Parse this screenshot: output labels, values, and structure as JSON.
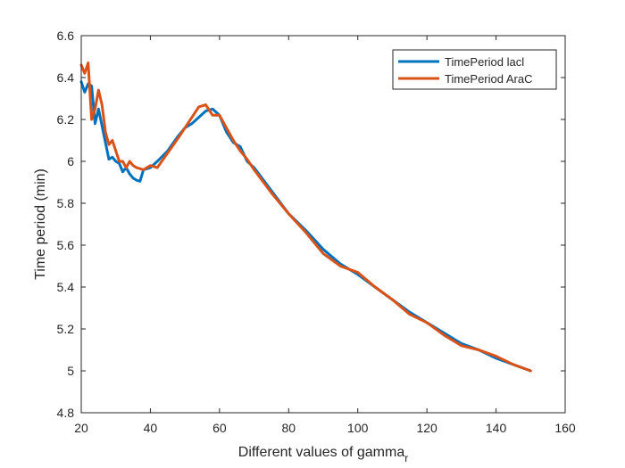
{
  "chart_data": {
    "type": "line",
    "xlabel": "Different values of gamma",
    "xlabel_subscript": "r",
    "ylabel": "Time period (min)",
    "xlim": [
      20,
      160
    ],
    "ylim": [
      4.8,
      6.6
    ],
    "xticks": [
      20,
      40,
      60,
      80,
      100,
      120,
      140,
      160
    ],
    "yticks": [
      4.8,
      5,
      5.2,
      5.4,
      5.6,
      5.8,
      6,
      6.2,
      6.4,
      6.6
    ],
    "xtick_labels": [
      "20",
      "40",
      "60",
      "80",
      "100",
      "120",
      "140",
      "160"
    ],
    "ytick_labels": [
      "4.8",
      "5",
      "5.2",
      "5.4",
      "5.6",
      "5.8",
      "6",
      "6.2",
      "6.4",
      "6.6"
    ],
    "grid": false,
    "legend_position": "top-right",
    "series": [
      {
        "name": "TimePeriod lacl",
        "color": "#0072BD",
        "x": [
          20,
          21,
          22,
          23,
          24,
          25,
          26,
          27,
          28,
          29,
          30,
          31,
          32,
          33,
          34,
          35,
          36,
          37,
          38,
          40,
          42,
          45,
          48,
          50,
          52,
          54,
          56,
          58,
          60,
          62,
          64,
          66,
          68,
          70,
          75,
          80,
          85,
          90,
          95,
          100,
          105,
          110,
          115,
          120,
          125,
          130,
          135,
          140,
          145,
          150
        ],
        "y": [
          6.38,
          6.33,
          6.37,
          6.36,
          6.18,
          6.25,
          6.17,
          6.09,
          6.01,
          6.02,
          6.0,
          5.99,
          5.95,
          5.97,
          5.94,
          5.92,
          5.91,
          5.905,
          5.96,
          5.97,
          6.0,
          6.05,
          6.12,
          6.16,
          6.18,
          6.21,
          6.24,
          6.25,
          6.22,
          6.14,
          6.09,
          6.07,
          6.0,
          5.97,
          5.86,
          5.75,
          5.67,
          5.58,
          5.51,
          5.46,
          5.4,
          5.34,
          5.28,
          5.23,
          5.18,
          5.13,
          5.1,
          5.06,
          5.03,
          5.0
        ]
      },
      {
        "name": "TimePeriod AraC",
        "color": "#D95319",
        "x": [
          20,
          21,
          22,
          23,
          24,
          25,
          26,
          27,
          28,
          29,
          30,
          31,
          32,
          33,
          34,
          35,
          36,
          37,
          38,
          40,
          42,
          45,
          48,
          50,
          52,
          54,
          56,
          58,
          60,
          62,
          64,
          66,
          68,
          70,
          75,
          80,
          85,
          90,
          95,
          100,
          105,
          110,
          115,
          120,
          125,
          130,
          135,
          140,
          145,
          150
        ],
        "y": [
          6.46,
          6.42,
          6.47,
          6.2,
          6.25,
          6.34,
          6.27,
          6.14,
          6.08,
          6.1,
          6.05,
          6.0,
          6.0,
          5.97,
          6.0,
          5.98,
          5.97,
          5.965,
          5.96,
          5.98,
          5.97,
          6.04,
          6.11,
          6.16,
          6.21,
          6.26,
          6.27,
          6.22,
          6.22,
          6.16,
          6.1,
          6.05,
          6.01,
          5.96,
          5.85,
          5.75,
          5.66,
          5.56,
          5.5,
          5.47,
          5.4,
          5.34,
          5.27,
          5.23,
          5.17,
          5.12,
          5.1,
          5.07,
          5.03,
          5.0
        ]
      }
    ]
  }
}
